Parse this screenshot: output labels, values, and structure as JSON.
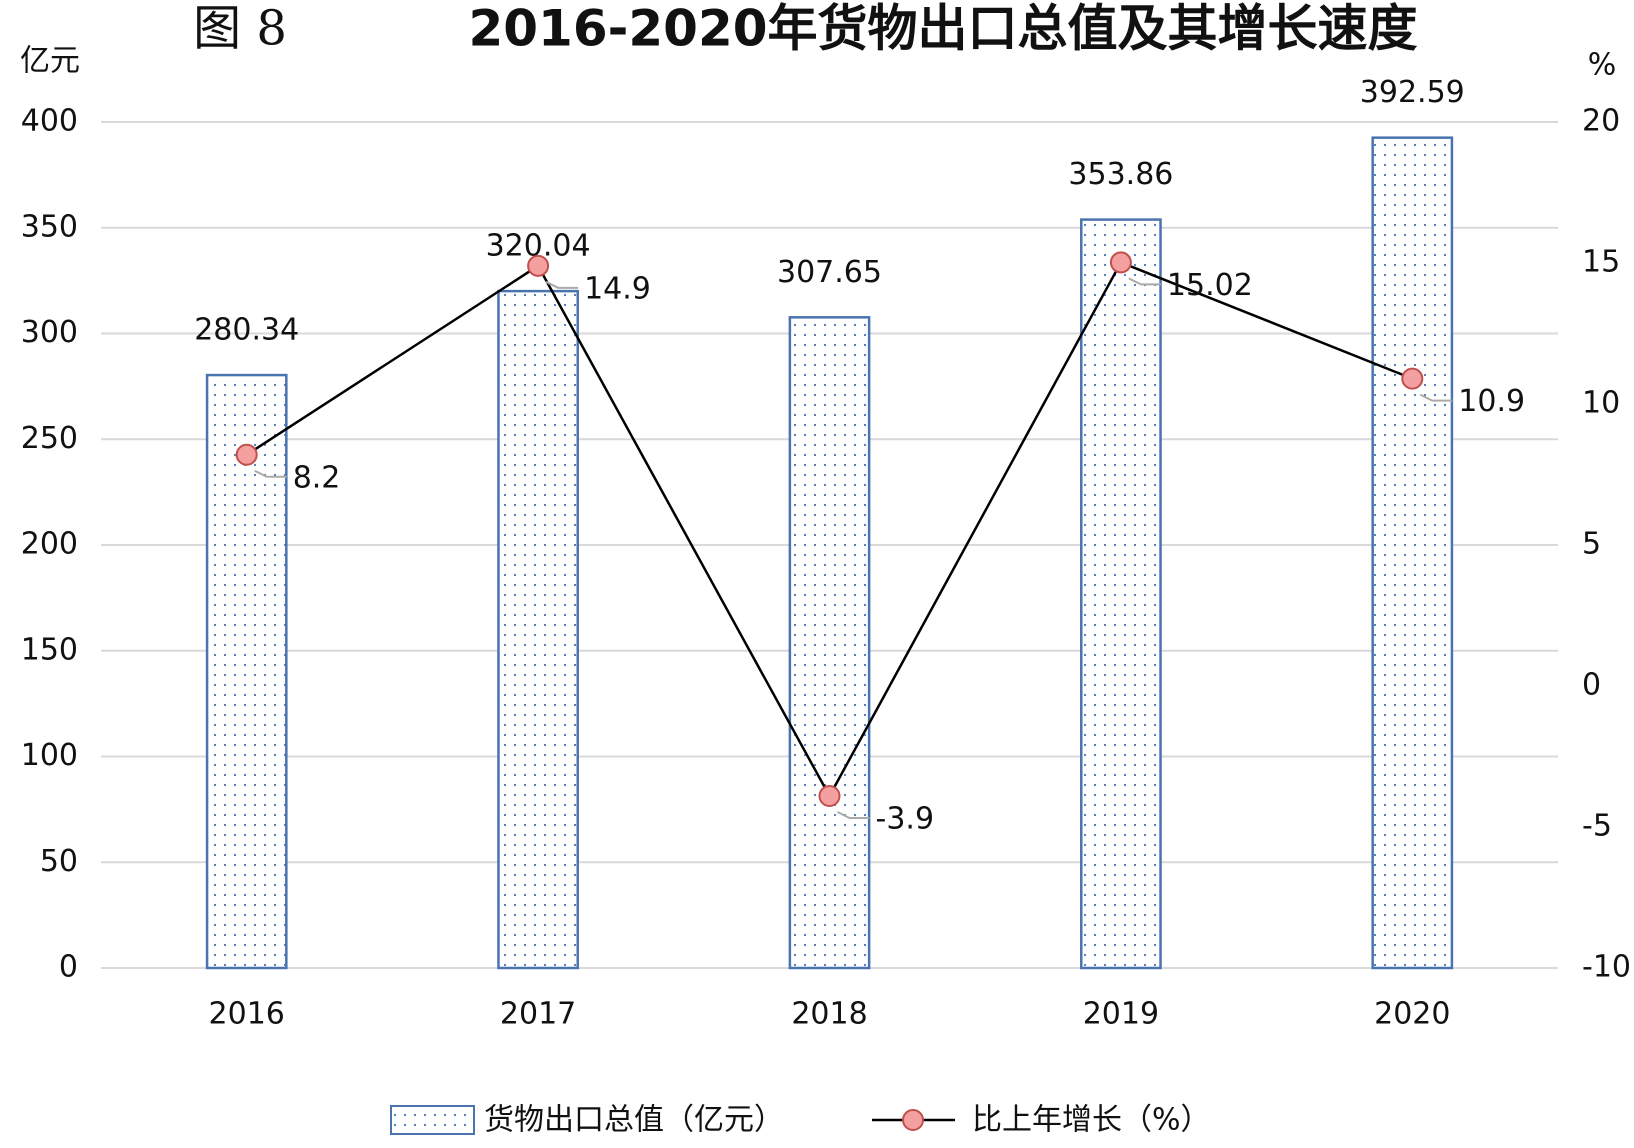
{
  "chart_data": {
    "type": "bar-line",
    "figure_label": "图 8",
    "title": "2016-2020年货物出口总值及其增长速度",
    "y_axis_label": "亿元",
    "y2_axis_label": "%",
    "categories": [
      "2016",
      "2017",
      "2018",
      "2019",
      "2020"
    ],
    "series": [
      {
        "name": "货物出口总值（亿元）",
        "type": "bar",
        "color": "#4a74b0",
        "values": [
          280.34,
          320.04,
          307.65,
          353.86,
          392.59
        ]
      },
      {
        "name": "比上年增长（%）",
        "type": "line",
        "axis": "y2",
        "color": "#000000",
        "marker_color": "#f4a0a0",
        "values": [
          8.2,
          14.9,
          -3.9,
          15.02,
          10.9
        ]
      }
    ],
    "ylim": [
      0,
      400
    ],
    "yticks": [
      0,
      50,
      100,
      150,
      200,
      250,
      300,
      350,
      400
    ],
    "y2lim": [
      -10,
      20
    ],
    "y2ticks": [
      -10,
      -5,
      0,
      5,
      10,
      15,
      20
    ],
    "grid": true,
    "legend": "bottom"
  }
}
